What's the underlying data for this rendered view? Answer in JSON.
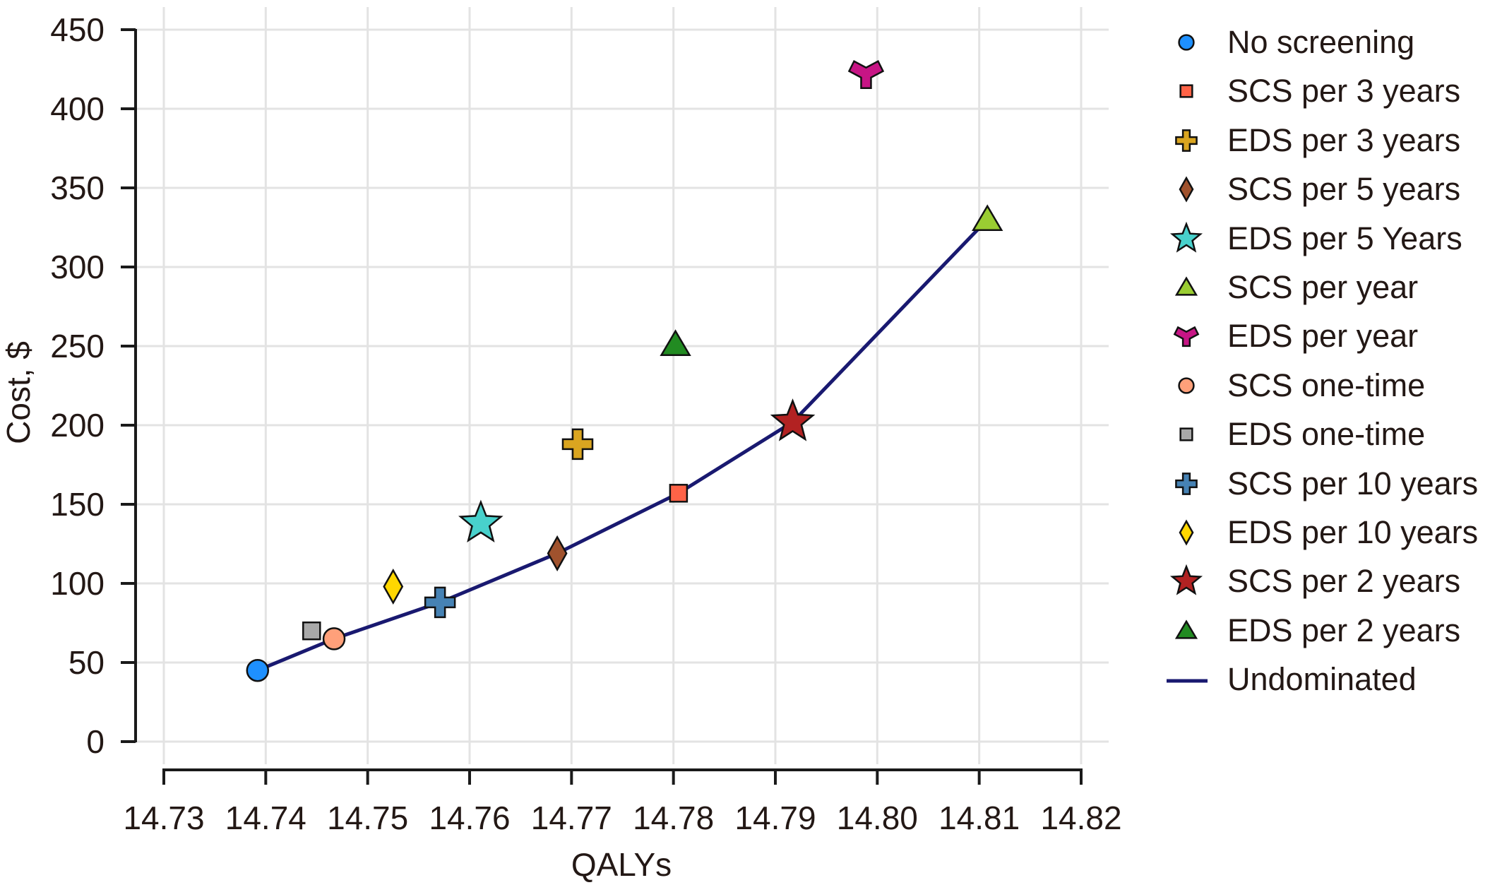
{
  "chart_data": {
    "type": "scatter",
    "title": "",
    "xlabel": "QALYs",
    "ylabel": "Cost, $",
    "xlim": [
      14.73,
      14.82
    ],
    "ylim": [
      0,
      450
    ],
    "x_ticks": [
      "14.73",
      "14.74",
      "14.75",
      "14.76",
      "14.77",
      "14.78",
      "14.79",
      "14.80",
      "14.81",
      "14.82"
    ],
    "y_ticks": [
      "0",
      "50",
      "100",
      "150",
      "200",
      "250",
      "300",
      "350",
      "400",
      "450"
    ],
    "grid": true,
    "legend_position": "right",
    "series": [
      {
        "name": "No screening",
        "marker": "circle",
        "color": "#1e90ff",
        "x": 14.7392,
        "y": 45
      },
      {
        "name": "SCS per 3 years",
        "marker": "square",
        "color": "#ff6347",
        "x": 14.7805,
        "y": 157
      },
      {
        "name": "EDS per 3 years",
        "marker": "plus",
        "color": "#daa520",
        "x": 14.7706,
        "y": 188
      },
      {
        "name": "SCS per 5 years",
        "marker": "diamond",
        "color": "#a0522d",
        "x": 14.7686,
        "y": 119
      },
      {
        "name": "EDS per 5 Years",
        "marker": "star",
        "color": "#48d1cc",
        "x": 14.7611,
        "y": 138
      },
      {
        "name": "SCS per year",
        "marker": "triangle",
        "color": "#9acd32",
        "x": 14.8108,
        "y": 330
      },
      {
        "name": "EDS per year",
        "marker": "tri_y",
        "color": "#c71585",
        "x": 14.7989,
        "y": 422
      },
      {
        "name": "SCS one-time",
        "marker": "circle",
        "color": "#ffa07a",
        "x": 14.7467,
        "y": 65
      },
      {
        "name": "EDS one-time",
        "marker": "square",
        "color": "#a9a9a9",
        "x": 14.7445,
        "y": 70
      },
      {
        "name": "SCS per 10 years",
        "marker": "plus",
        "color": "#4682b4",
        "x": 14.7571,
        "y": 88
      },
      {
        "name": "EDS per 10 years",
        "marker": "diamond",
        "color": "#ffd700",
        "x": 14.7525,
        "y": 98
      },
      {
        "name": "SCS per 2 years",
        "marker": "star",
        "color": "#b22222",
        "x": 14.7917,
        "y": 202
      },
      {
        "name": "EDS per 2 years",
        "marker": "triangle",
        "color": "#228b22",
        "x": 14.7802,
        "y": 251
      }
    ],
    "line": {
      "name": "Undominated",
      "color": "#191970",
      "points": [
        {
          "x": 14.7392,
          "y": 45
        },
        {
          "x": 14.7467,
          "y": 65
        },
        {
          "x": 14.7571,
          "y": 88
        },
        {
          "x": 14.7686,
          "y": 119
        },
        {
          "x": 14.7805,
          "y": 157
        },
        {
          "x": 14.7917,
          "y": 202
        },
        {
          "x": 14.8108,
          "y": 330
        }
      ]
    }
  },
  "legend": {
    "items": [
      "No screening",
      "SCS per 3 years",
      "EDS per 3 years",
      "SCS per 5 years",
      "EDS per 5 Years",
      "SCS per year",
      "EDS per year",
      "SCS one-time",
      "EDS one-time",
      "SCS per 10 years",
      "EDS per 10 years",
      "SCS per 2 years",
      "EDS per 2 years",
      "Undominated"
    ]
  }
}
